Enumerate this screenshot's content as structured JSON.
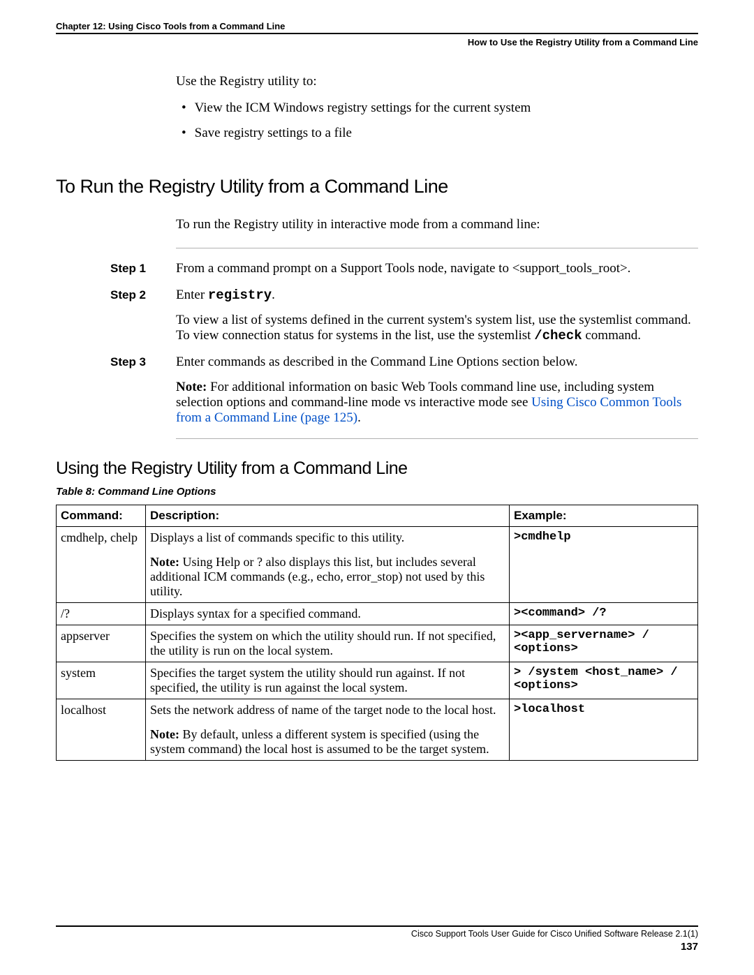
{
  "header": {
    "chapter": "Chapter 12: Using Cisco Tools from a Command Line",
    "section": "How to Use the Registry Utility from a Command Line"
  },
  "intro": "Use the Registry utility to:",
  "bullets": [
    "View the ICM Windows registry settings for the current system",
    "Save registry settings to a file"
  ],
  "h2": "To Run the Registry Utility from a Command Line",
  "lead": "To run the Registry utility in interactive mode from a command line:",
  "steps": [
    {
      "label": "Step 1",
      "html": "From a command prompt on a Support Tools node, navigate to &lt;support_tools_root&gt;."
    },
    {
      "label": "Step 2",
      "html": "Enter <span class=\"mono\">registry</span>.",
      "extra": "To view a list of systems defined in the current system's system list, use the systemlist command. To view connection status for systems in the list, use the systemlist <span class=\"mono\">/check</span> command."
    },
    {
      "label": "Step 3",
      "html": "Enter commands as described in the Command Line Options section below.",
      "note": "<b>Note:</b> For additional information on basic Web Tools command line use, including system selection options and command-line mode vs interactive mode see <span class=\"link\">Using Cisco Common Tools from a Command Line (page 125)</span>."
    }
  ],
  "h3": "Using the Registry Utility from a Command Line",
  "table_caption": "Table 8: Command Line Options",
  "table": {
    "headers": [
      "Command:",
      "Description:",
      "Example:"
    ],
    "rows": [
      {
        "cmd": "cmdhelp, chelp",
        "desc": "<p>Displays a list of commands specific to this utility.</p><p><b>Note:</b> Using Help or ? also displays this list, but includes several additional ICM commands (e.g., echo, error_stop) not used by this utility.</p>",
        "ex": "&gt;cmdhelp"
      },
      {
        "cmd": "/?",
        "desc": "<p>Displays syntax for a specified command.</p>",
        "ex": "&gt;&lt;command&gt; /?"
      },
      {
        "cmd": "appserver",
        "desc": "<p>Specifies the system on which the utility should run. If not specified, the utility is run on the local system.</p>",
        "ex": "&gt;&lt;app_servername&gt; / &lt;options&gt;"
      },
      {
        "cmd": "system",
        "desc": "<p>Specifies the target system the utility should run against. If not specified, the utility is run against the local system.</p>",
        "ex": "&gt; /system &lt;host_name&gt; / &lt;options&gt;"
      },
      {
        "cmd": "localhost",
        "desc": "<p>Sets the network address of name of the target node to the local host.</p><p><b>Note:</b> By default, unless a different system is specified (using the system command) the local host is assumed to be the target system.</p>",
        "ex": "&gt;localhost"
      }
    ]
  },
  "footer": {
    "guide": "Cisco Support Tools User Guide for Cisco Unified Software Release 2.1(1)",
    "page": "137"
  }
}
